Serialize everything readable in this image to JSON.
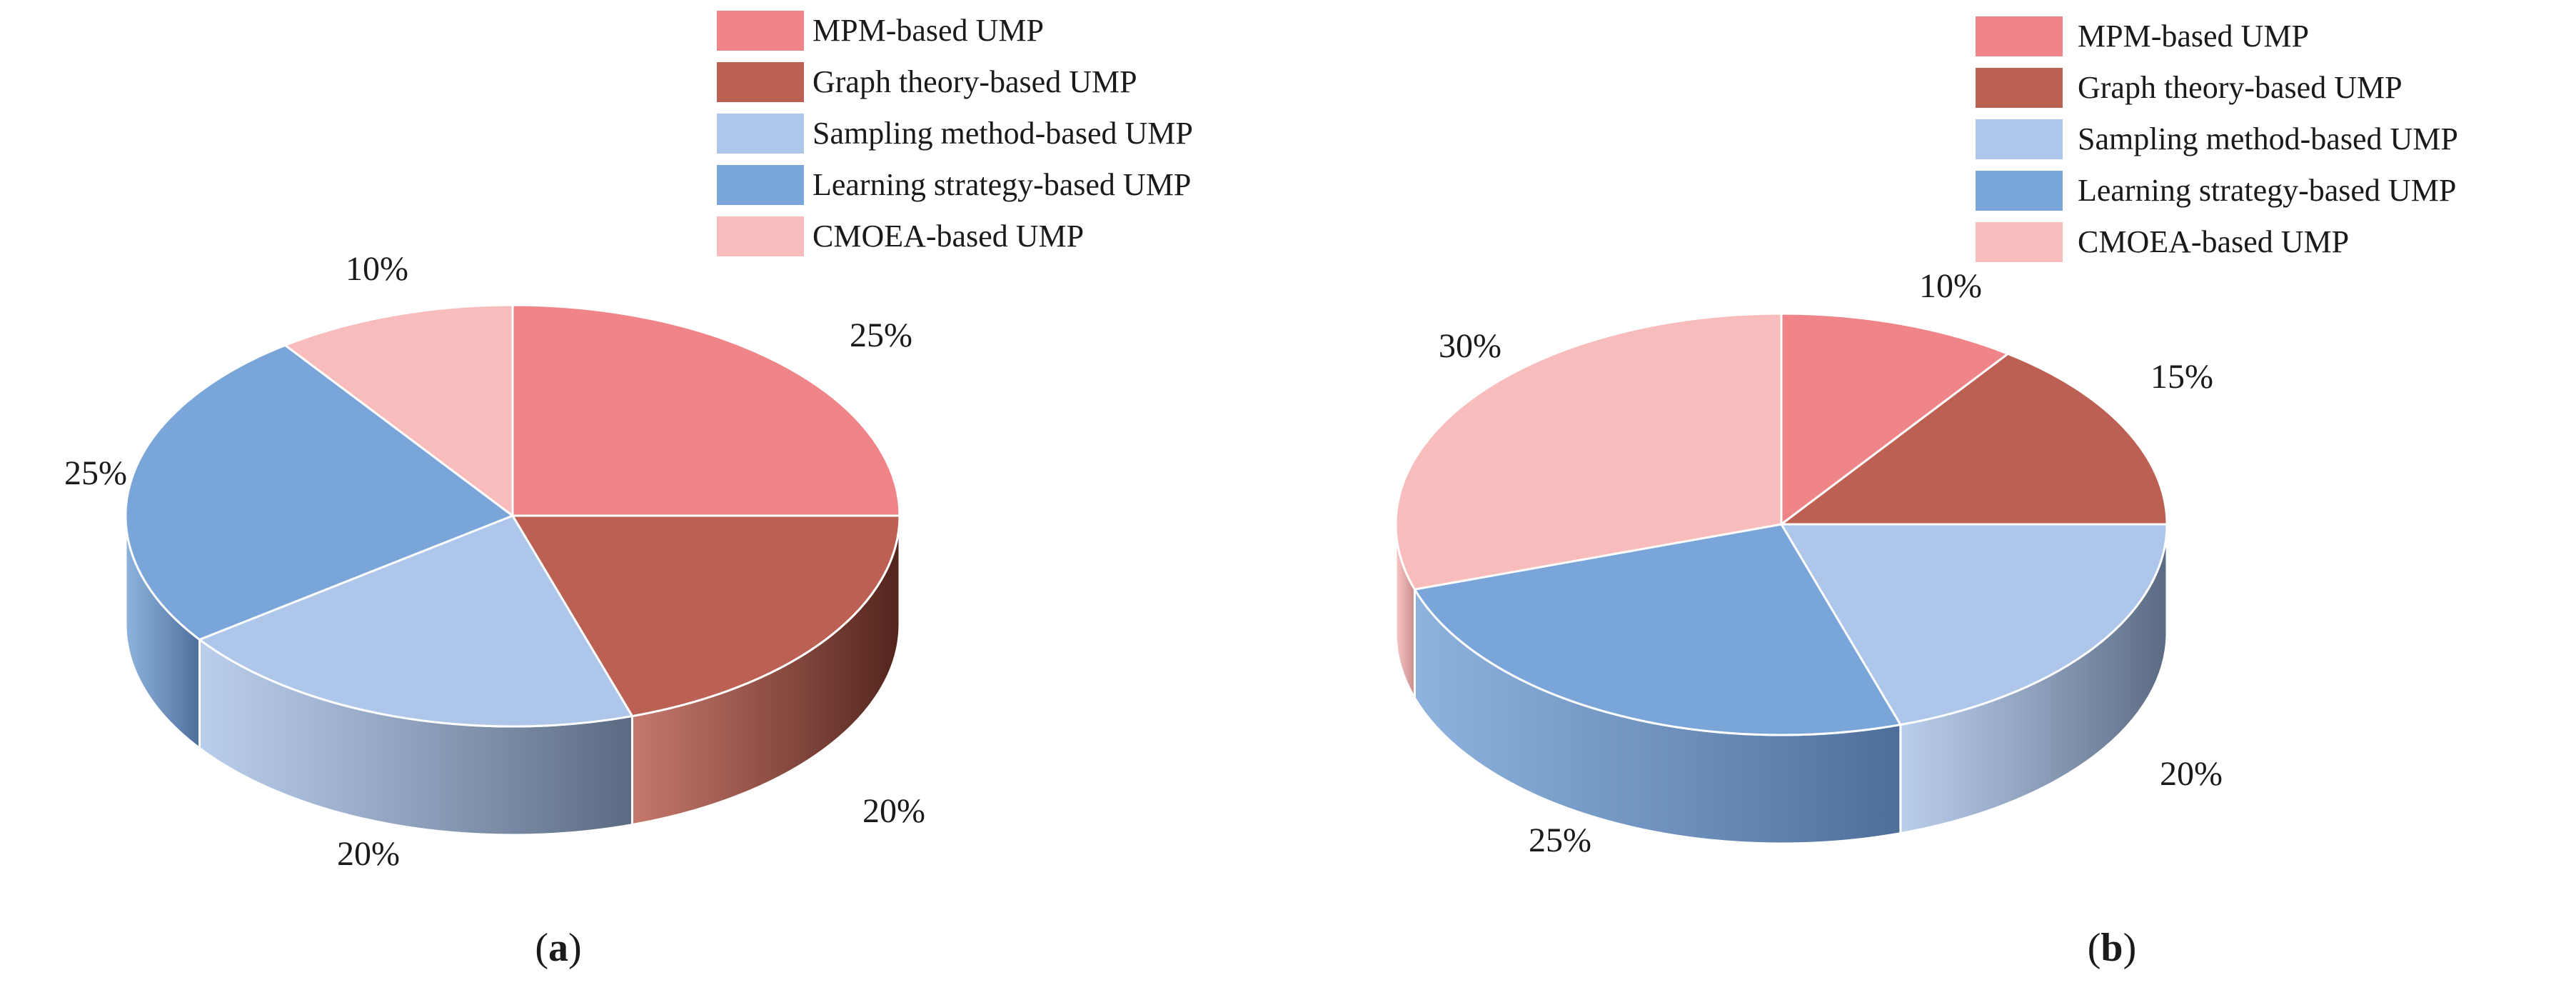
{
  "chart_data": [
    {
      "type": "pie",
      "panel": "a",
      "categories": [
        "MPM-based UMP",
        "Graph theory-based UMP",
        "Sampling method-based UMP",
        "Learning strategy-based UMP",
        "CMOEA-based UMP"
      ],
      "values": [
        25,
        20,
        20,
        25,
        10
      ],
      "labels": [
        "25%",
        "20%",
        "20%",
        "25%",
        "10%"
      ],
      "legend_position": "top-right"
    },
    {
      "type": "pie",
      "panel": "b",
      "categories": [
        "MPM-based UMP",
        "Graph theory-based UMP",
        "Sampling method-based UMP",
        "Learning strategy-based UMP",
        "CMOEA-based UMP"
      ],
      "values": [
        10,
        15,
        20,
        25,
        30
      ],
      "labels": [
        "10%",
        "15%",
        "20%",
        "25%",
        "30%"
      ],
      "legend_position": "top-right"
    }
  ],
  "colors": [
    "#ef8589",
    "#bb6052",
    "#aec6ea",
    "#79a5d8",
    "#f7bcbb"
  ],
  "side_colors": [
    "#c5686e",
    "#52241c",
    "#5b6a82",
    "#4e6e9a",
    "#c98b8b"
  ],
  "panel_labels": {
    "a": {
      "open": "(",
      "letter": "a",
      "close": ")"
    },
    "b": {
      "open": "(",
      "letter": "b",
      "close": ")"
    }
  }
}
